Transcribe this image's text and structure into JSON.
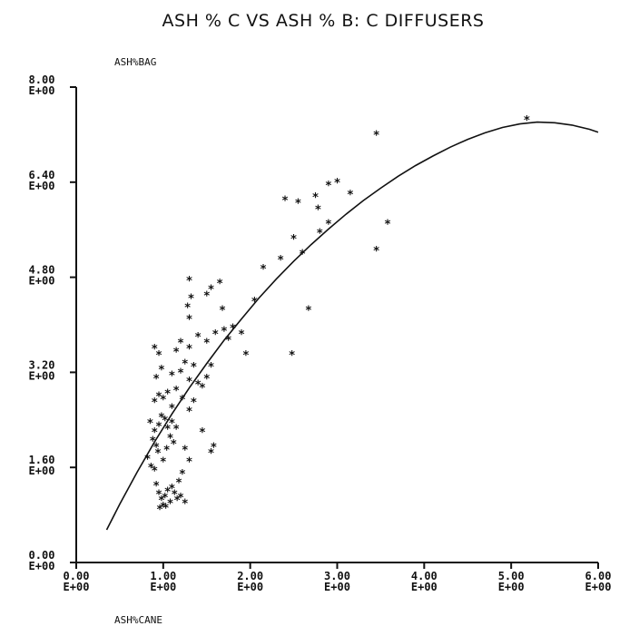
{
  "chart_data": {
    "type": "scatter",
    "title": "ASH % C VS ASH % B: C DIFFUSERS",
    "xlabel": "ASH%CANE",
    "ylabel": "ASH%BAG",
    "xlim": [
      0,
      6
    ],
    "ylim": [
      0,
      8
    ],
    "x_ticks": [
      {
        "value": 0,
        "line1": "0.00",
        "line2": "E+00"
      },
      {
        "value": 1,
        "line1": "1.00",
        "line2": "E+00"
      },
      {
        "value": 2,
        "line1": "2.00",
        "line2": "E+00"
      },
      {
        "value": 3,
        "line1": "3.00",
        "line2": "E+00"
      },
      {
        "value": 4,
        "line1": "4.00",
        "line2": "E+00"
      },
      {
        "value": 5,
        "line1": "5.00",
        "line2": "E+00"
      },
      {
        "value": 6,
        "line1": "6.00",
        "line2": "E+00"
      }
    ],
    "y_ticks": [
      {
        "value": 0,
        "line1": "0.00",
        "line2": "E+00"
      },
      {
        "value": 1.6,
        "line1": "1.60",
        "line2": "E+00"
      },
      {
        "value": 3.2,
        "line1": "3.20",
        "line2": "E+00"
      },
      {
        "value": 4.8,
        "line1": "4.80",
        "line2": "E+00"
      },
      {
        "value": 6.4,
        "line1": "6.40",
        "line2": "E+00"
      },
      {
        "value": 8,
        "line1": "8.00",
        "line2": "E+00"
      }
    ],
    "marker": "*",
    "grid": false,
    "points": [
      [
        0.85,
        2.35
      ],
      [
        0.9,
        2.2
      ],
      [
        0.88,
        2.05
      ],
      [
        0.92,
        1.95
      ],
      [
        0.95,
        2.3
      ],
      [
        0.98,
        2.45
      ],
      [
        1.02,
        2.4
      ],
      [
        1.05,
        2.25
      ],
      [
        1.08,
        2.1
      ],
      [
        1.1,
        2.35
      ],
      [
        0.82,
        1.75
      ],
      [
        0.86,
        1.6
      ],
      [
        0.9,
        1.55
      ],
      [
        0.94,
        1.85
      ],
      [
        1.0,
        1.7
      ],
      [
        1.04,
        1.9
      ],
      [
        1.12,
        2.0
      ],
      [
        1.15,
        2.25
      ],
      [
        0.92,
        1.3
      ],
      [
        0.95,
        1.15
      ],
      [
        0.98,
        1.05
      ],
      [
        1.0,
        0.95
      ],
      [
        1.02,
        1.1
      ],
      [
        1.05,
        1.2
      ],
      [
        1.08,
        1.0
      ],
      [
        1.1,
        1.25
      ],
      [
        1.13,
        1.15
      ],
      [
        1.16,
        1.05
      ],
      [
        1.2,
        1.1
      ],
      [
        1.25,
        1.0
      ],
      [
        0.96,
        0.9
      ],
      [
        1.03,
        0.92
      ],
      [
        1.18,
        1.35
      ],
      [
        1.22,
        1.5
      ],
      [
        0.9,
        2.7
      ],
      [
        0.95,
        2.8
      ],
      [
        1.0,
        2.75
      ],
      [
        1.05,
        2.85
      ],
      [
        1.1,
        2.6
      ],
      [
        1.15,
        2.9
      ],
      [
        0.92,
        3.1
      ],
      [
        0.98,
        3.25
      ],
      [
        1.1,
        3.15
      ],
      [
        1.2,
        3.2
      ],
      [
        1.25,
        3.35
      ],
      [
        1.3,
        3.05
      ],
      [
        1.35,
        3.3
      ],
      [
        1.4,
        3.0
      ],
      [
        1.45,
        2.95
      ],
      [
        1.5,
        3.1
      ],
      [
        1.55,
        3.3
      ],
      [
        1.22,
        2.75
      ],
      [
        1.3,
        2.55
      ],
      [
        1.35,
        2.7
      ],
      [
        1.25,
        1.9
      ],
      [
        1.3,
        1.7
      ],
      [
        1.45,
        2.2
      ],
      [
        1.55,
        1.85
      ],
      [
        1.58,
        1.95
      ],
      [
        0.9,
        3.6
      ],
      [
        0.95,
        3.5
      ],
      [
        1.15,
        3.55
      ],
      [
        1.2,
        3.7
      ],
      [
        1.3,
        3.6
      ],
      [
        1.4,
        3.8
      ],
      [
        1.5,
        3.7
      ],
      [
        1.6,
        3.85
      ],
      [
        1.7,
        3.9
      ],
      [
        1.75,
        3.75
      ],
      [
        1.8,
        3.95
      ],
      [
        1.9,
        3.85
      ],
      [
        1.95,
        3.5
      ],
      [
        1.28,
        4.3
      ],
      [
        1.32,
        4.45
      ],
      [
        1.3,
        4.75
      ],
      [
        1.5,
        4.5
      ],
      [
        1.55,
        4.6
      ],
      [
        1.65,
        4.7
      ],
      [
        1.68,
        4.25
      ],
      [
        1.3,
        4.1
      ],
      [
        2.05,
        4.4
      ],
      [
        2.15,
        4.95
      ],
      [
        2.35,
        5.1
      ],
      [
        2.5,
        5.45
      ],
      [
        2.48,
        3.5
      ],
      [
        2.6,
        5.2
      ],
      [
        2.67,
        4.25
      ],
      [
        2.8,
        5.55
      ],
      [
        2.9,
        5.7
      ],
      [
        2.78,
        5.95
      ],
      [
        2.55,
        6.05
      ],
      [
        2.4,
        6.1
      ],
      [
        2.75,
        6.15
      ],
      [
        2.9,
        6.35
      ],
      [
        3.0,
        6.4
      ],
      [
        3.15,
        6.2
      ],
      [
        3.45,
        5.25
      ],
      [
        3.58,
        5.7
      ],
      [
        3.45,
        7.2
      ],
      [
        5.18,
        7.45
      ]
    ],
    "curve": [
      [
        0.35,
        0.55
      ],
      [
        0.5,
        0.98
      ],
      [
        0.7,
        1.52
      ],
      [
        0.9,
        2.03
      ],
      [
        1.1,
        2.5
      ],
      [
        1.3,
        2.94
      ],
      [
        1.5,
        3.35
      ],
      [
        1.7,
        3.74
      ],
      [
        1.9,
        4.1
      ],
      [
        2.1,
        4.45
      ],
      [
        2.3,
        4.77
      ],
      [
        2.5,
        5.07
      ],
      [
        2.7,
        5.35
      ],
      [
        2.9,
        5.61
      ],
      [
        3.1,
        5.86
      ],
      [
        3.3,
        6.09
      ],
      [
        3.5,
        6.3
      ],
      [
        3.7,
        6.5
      ],
      [
        3.9,
        6.68
      ],
      [
        4.1,
        6.84
      ],
      [
        4.3,
        6.99
      ],
      [
        4.5,
        7.12
      ],
      [
        4.7,
        7.23
      ],
      [
        4.9,
        7.32
      ],
      [
        5.1,
        7.38
      ],
      [
        5.3,
        7.41
      ],
      [
        5.5,
        7.4
      ],
      [
        5.7,
        7.36
      ],
      [
        5.9,
        7.29
      ],
      [
        6.0,
        7.24
      ]
    ]
  }
}
